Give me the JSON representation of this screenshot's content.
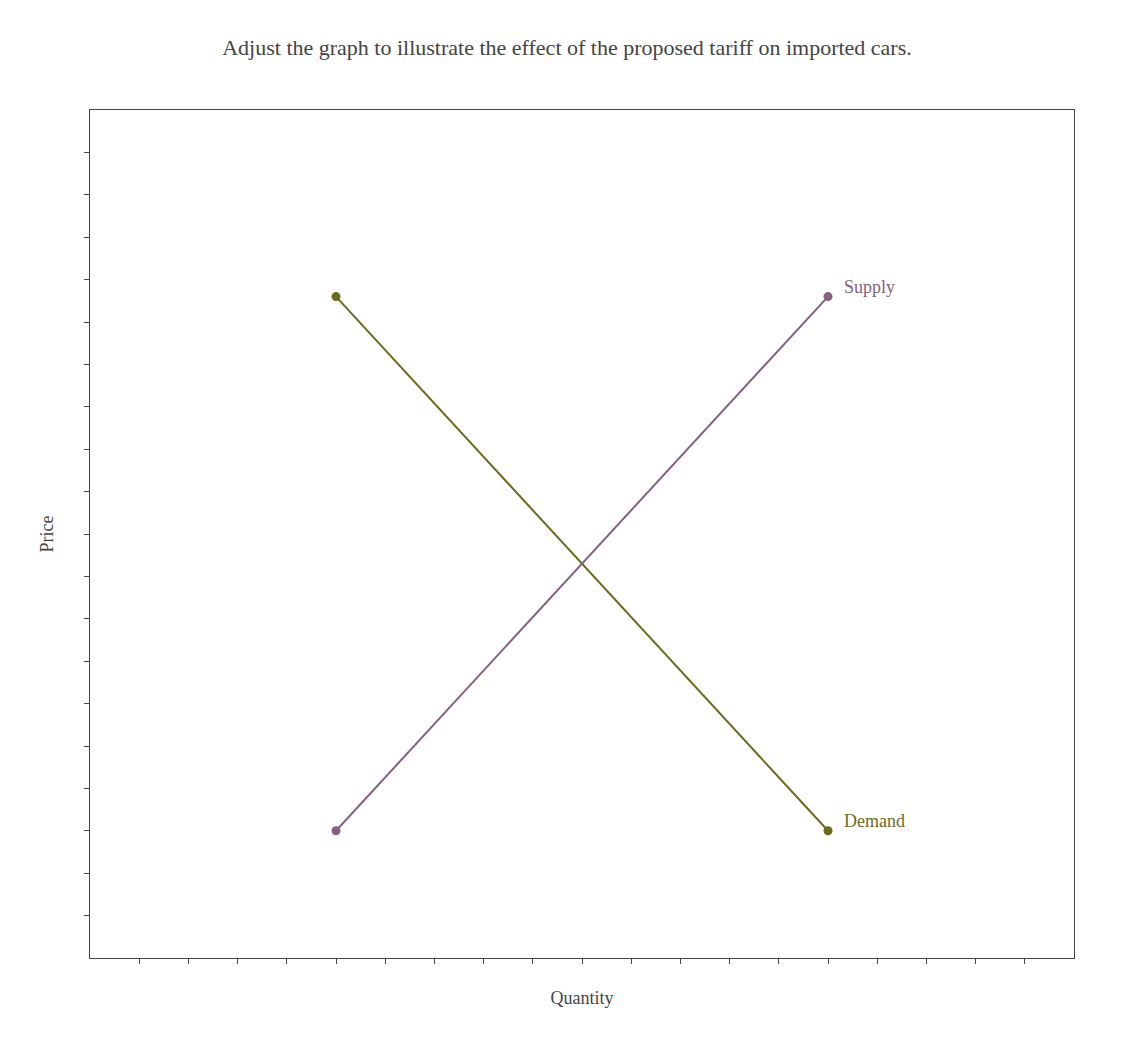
{
  "chart_data": {
    "type": "line",
    "title": "Adjust the graph to illustrate the effect of the proposed tariff on imported cars.",
    "xlabel": "Quantity",
    "ylabel": "Price",
    "series": [
      {
        "name": "Demand",
        "color": "#6b6b1e",
        "marker": "circle",
        "x": [
          0.25,
          0.75
        ],
        "values": [
          0.78,
          0.15
        ]
      },
      {
        "name": "Supply",
        "color": "#856080",
        "marker": "circle",
        "x": [
          0.25,
          0.75
        ],
        "values": [
          0.15,
          0.78
        ]
      }
    ],
    "xlim": [
      0,
      1
    ],
    "ylim": [
      0,
      1
    ],
    "xticks": [
      0.05,
      0.1,
      0.15,
      0.2,
      0.25,
      0.3,
      0.35,
      0.4,
      0.45,
      0.5,
      0.55,
      0.6,
      0.65,
      0.7,
      0.75,
      0.8,
      0.85,
      0.9,
      0.95
    ],
    "yticks": [
      0.05,
      0.1,
      0.15,
      0.2,
      0.25,
      0.3,
      0.35,
      0.4,
      0.45,
      0.5,
      0.55,
      0.6,
      0.65,
      0.7,
      0.75,
      0.8,
      0.85,
      0.9,
      0.95
    ],
    "tick_labels": false,
    "grid": false
  }
}
